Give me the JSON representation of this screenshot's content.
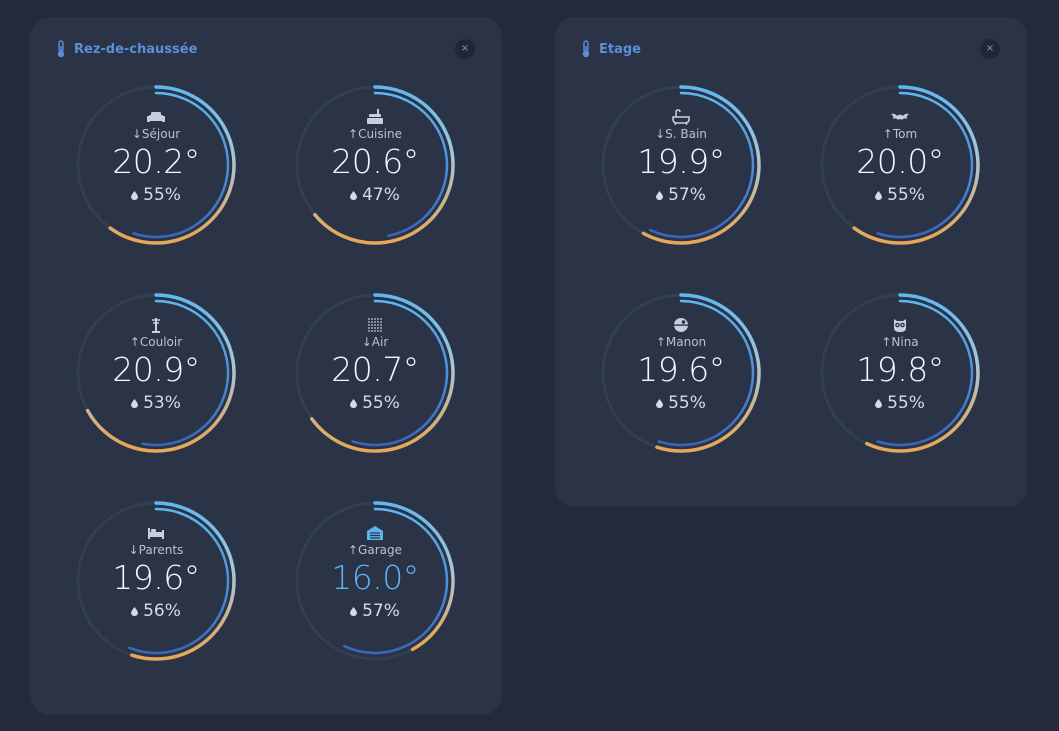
{
  "colors": {
    "background": "#232b3b",
    "panel": "#2a3446",
    "title": "#5b8fd6",
    "track": "#343e52",
    "arc_blue": "#5fb8f2",
    "arc_dark_blue": "#3a66bf",
    "arc_orange": "#e8a750",
    "cold_temp": "#5db3f0"
  },
  "panels": [
    {
      "title": "Rez-de-chaussée",
      "icon": "thermometer-icon",
      "close_label": "×",
      "rooms": [
        {
          "label": "↓Séjour",
          "icon": "sofa-icon",
          "temperature": "20.2°",
          "humidity": "55%",
          "temp_fraction": 0.6,
          "hum_fraction": 0.55
        },
        {
          "label": "↑Cuisine",
          "icon": "kitchen-icon",
          "temperature": "20.6°",
          "humidity": "47%",
          "temp_fraction": 0.64,
          "hum_fraction": 0.47
        },
        {
          "label": "↑Couloir",
          "icon": "coat-rack-icon",
          "temperature": "20.9°",
          "humidity": "53%",
          "temp_fraction": 0.67,
          "hum_fraction": 0.53
        },
        {
          "label": "↓Air",
          "icon": "grid-dots-icon",
          "temperature": "20.7°",
          "humidity": "55%",
          "temp_fraction": 0.65,
          "hum_fraction": 0.55
        },
        {
          "label": "↓Parents",
          "icon": "bed-icon",
          "temperature": "19.6°",
          "humidity": "56%",
          "temp_fraction": 0.55,
          "hum_fraction": 0.56
        },
        {
          "label": "↑Garage",
          "icon": "garage-icon",
          "temperature": "16.0°",
          "humidity": "57%",
          "temp_fraction": 0.42,
          "hum_fraction": 0.57,
          "cold": true
        }
      ]
    },
    {
      "title": "Etage",
      "icon": "thermometer-icon",
      "close_label": "×",
      "rooms": [
        {
          "label": "↓S. Bain",
          "icon": "bathtub-icon",
          "temperature": "19.9°",
          "humidity": "57%",
          "temp_fraction": 0.58,
          "hum_fraction": 0.57
        },
        {
          "label": "↑Tom",
          "icon": "bat-icon",
          "temperature": "20.0°",
          "humidity": "55%",
          "temp_fraction": 0.6,
          "hum_fraction": 0.55
        },
        {
          "label": "↑Manon",
          "icon": "death-star-icon",
          "temperature": "19.6°",
          "humidity": "55%",
          "temp_fraction": 0.55,
          "hum_fraction": 0.55
        },
        {
          "label": "↑Nina",
          "icon": "owl-icon",
          "temperature": "19.8°",
          "humidity": "55%",
          "temp_fraction": 0.57,
          "hum_fraction": 0.55
        }
      ]
    }
  ]
}
